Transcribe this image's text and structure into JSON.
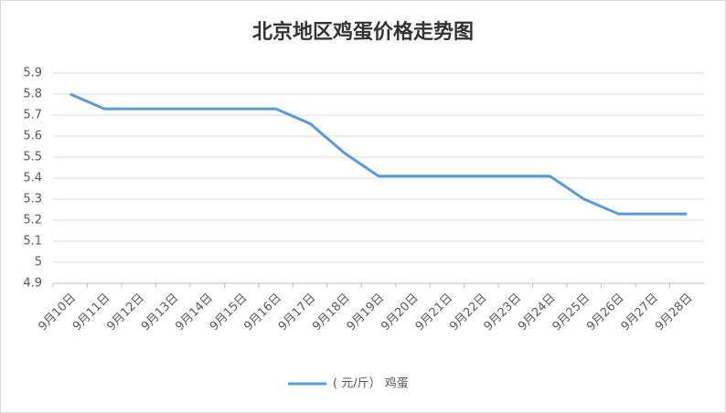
{
  "chart_data": {
    "type": "line",
    "title": "北京地区鸡蛋价格走势图",
    "categories": [
      "9月10日",
      "9月11日",
      "9月12日",
      "9月13日",
      "9月14日",
      "9月15日",
      "9月16日",
      "9月17日",
      "9月18日",
      "9月19日",
      "9月20日",
      "9月21日",
      "9月22日",
      "9月23日",
      "9月24日",
      "9月25日",
      "9月26日",
      "9月27日",
      "9月28日"
    ],
    "series": [
      {
        "name": "( 元/斤） 鸡蛋",
        "color": "#5b9bd5",
        "values": [
          5.8,
          5.73,
          5.73,
          5.73,
          5.73,
          5.73,
          5.73,
          5.66,
          5.52,
          5.41,
          5.41,
          5.41,
          5.41,
          5.41,
          5.41,
          5.3,
          5.23,
          5.23,
          5.23
        ]
      }
    ],
    "ylim": [
      4.9,
      5.9
    ],
    "yticks": [
      4.9,
      5,
      5.1,
      5.2,
      5.3,
      5.4,
      5.5,
      5.6,
      5.7,
      5.8,
      5.9
    ],
    "grid": true,
    "legend": "bottom"
  }
}
